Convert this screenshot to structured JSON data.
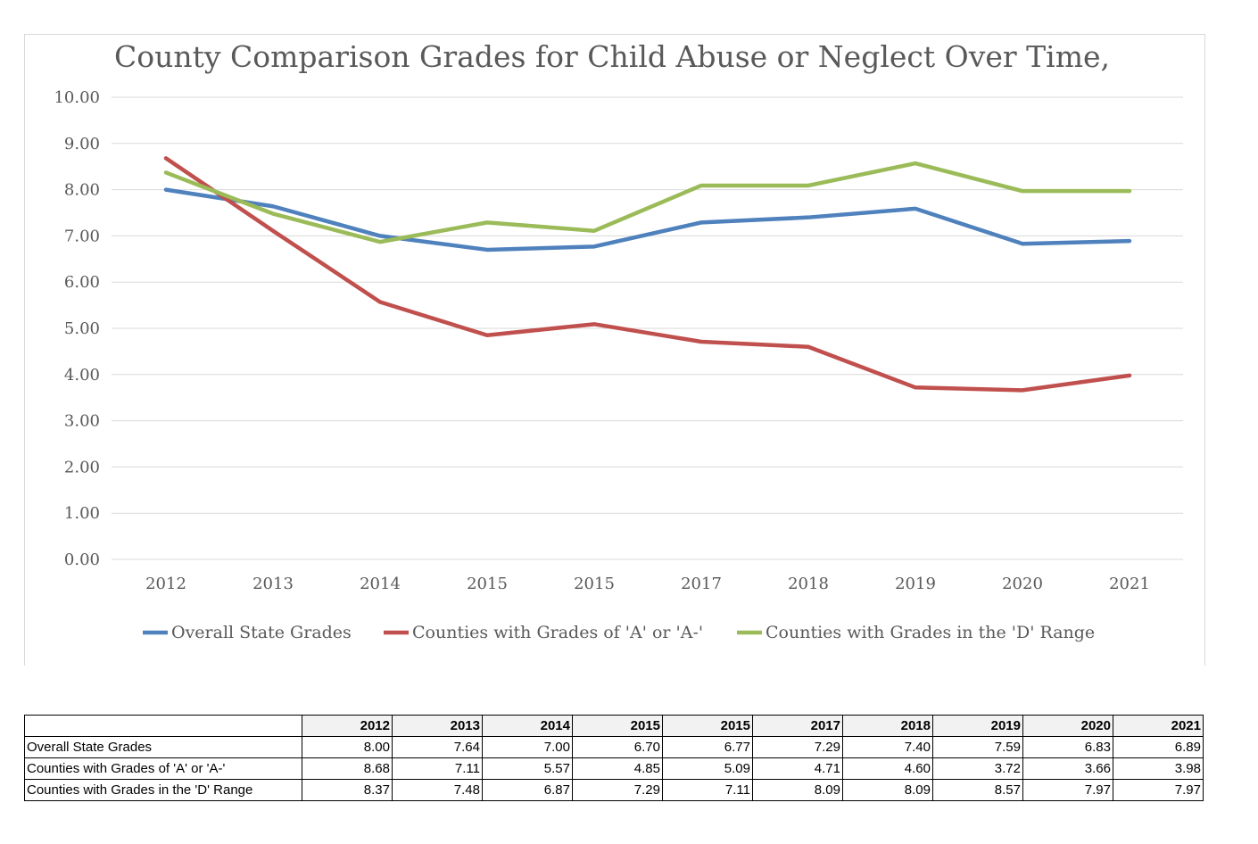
{
  "chart_data": {
    "type": "line",
    "title": "County Comparison Grades for Child Abuse or Neglect Over Time,",
    "categories": [
      "2012",
      "2013",
      "2014",
      "2015",
      "2015",
      "2017",
      "2018",
      "2019",
      "2020",
      "2021"
    ],
    "ylim": [
      0,
      10
    ],
    "y_ticks": [
      "0.00",
      "1.00",
      "2.00",
      "3.00",
      "4.00",
      "5.00",
      "6.00",
      "7.00",
      "8.00",
      "9.00",
      "10.00"
    ],
    "grid": true,
    "legend_position": "bottom",
    "series": [
      {
        "name": "Overall State Grades",
        "color": "#4f81bd",
        "values": [
          8.0,
          7.64,
          7.0,
          6.7,
          6.77,
          7.29,
          7.4,
          7.59,
          6.83,
          6.89
        ]
      },
      {
        "name": "Counties with Grades of 'A' or 'A-'",
        "color": "#c0504d",
        "values": [
          8.68,
          7.11,
          5.57,
          4.85,
          5.09,
          4.71,
          4.6,
          3.72,
          3.66,
          3.98
        ]
      },
      {
        "name": "Counties with Grades in the 'D' Range",
        "color": "#9bbb59",
        "values": [
          8.37,
          7.48,
          6.87,
          7.29,
          7.11,
          8.09,
          8.09,
          8.57,
          7.97,
          7.97
        ]
      }
    ]
  },
  "table": {
    "headers": [
      "2012",
      "2013",
      "2014",
      "2015",
      "2015",
      "2017",
      "2018",
      "2019",
      "2020",
      "2021"
    ],
    "rows": [
      {
        "label": "Overall State Grades",
        "cells": [
          "8.00",
          "7.64",
          "7.00",
          "6.70",
          "6.77",
          "7.29",
          "7.40",
          "7.59",
          "6.83",
          "6.89"
        ]
      },
      {
        "label": "Counties with Grades of 'A' or 'A-'",
        "cells": [
          "8.68",
          "7.11",
          "5.57",
          "4.85",
          "5.09",
          "4.71",
          "4.60",
          "3.72",
          "3.66",
          "3.98"
        ]
      },
      {
        "label": "Counties with Grades in the 'D' Range",
        "cells": [
          "8.37",
          "7.48",
          "6.87",
          "7.29",
          "7.11",
          "8.09",
          "8.09",
          "8.57",
          "7.97",
          "7.97"
        ]
      }
    ]
  }
}
